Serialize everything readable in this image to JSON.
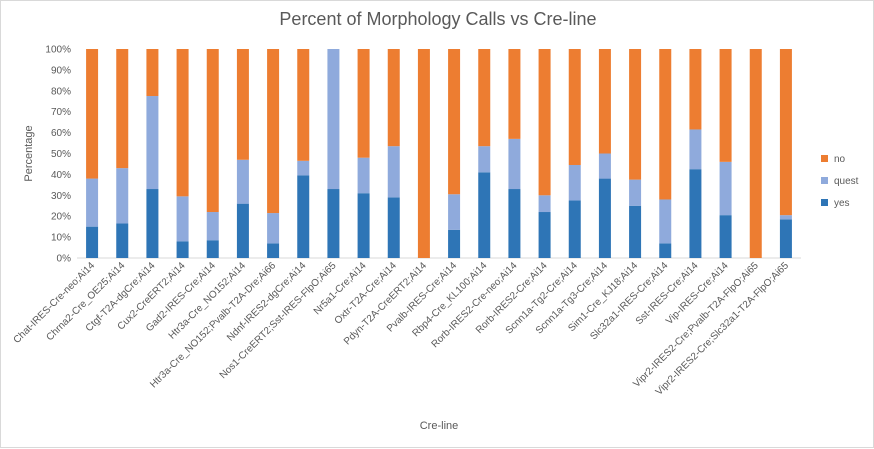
{
  "chart_data": {
    "type": "bar",
    "stacked": true,
    "title": "Percent of Morphology Calls vs Cre-line",
    "xlabel": "Cre-line",
    "ylabel": "Percentage",
    "ylim": [
      0,
      100
    ],
    "yticks": [
      "0%",
      "10%",
      "20%",
      "30%",
      "40%",
      "50%",
      "60%",
      "70%",
      "80%",
      "90%",
      "100%"
    ],
    "grid": false,
    "legend_position": "right",
    "categories": [
      "Chat-IRES-Cre-neo;Ai14",
      "Chrna2-Cre_OE25;Ai14",
      "Ctgf-T2A-dgCre;Ai14",
      "Cux2-CreERT2;Ai14",
      "Gad2-IRES-Cre;Ai14",
      "Htr3a-Cre_NO152;Ai14",
      "Htr3a-Cre_NO152;Pvalb-T2A-Dre;Ai66",
      "Ndnf-IRES2-dgCre;Ai14",
      "Nos1-CreERT2;Sst-IRES-FlpO;Ai65",
      "Nr5a1-Cre;Ai14",
      "Oxtr-T2A-Cre;Ai14",
      "Pdyn-T2A-CreERT2;Ai14",
      "Pvalb-IRES-Cre;Ai14",
      "Rbp4-Cre_KL100;Ai14",
      "Rorb-IRES2-Cre-neo;Ai14",
      "Rorb-IRES2-Cre;Ai14",
      "Scnn1a-Tg2-Cre;Ai14",
      "Scnn1a-Tg3-Cre;Ai14",
      "Sim1-Cre_KJ18;Ai14",
      "Slc32a1-IRES-Cre;Ai14",
      "Sst-IRES-Cre;Ai14",
      "Vip-IRES-Cre;Ai14",
      "Vipr2-IRES2-Cre;Pvalb-T2A-FlpO;Ai65",
      "Vipr2-IRES2-Cre;Slc32a1-T2A-FlpO;Ai65"
    ],
    "series": [
      {
        "name": "yes",
        "color": "#2e75b6",
        "values": [
          15,
          16.5,
          33,
          8,
          8.5,
          26,
          7,
          39.5,
          33,
          31,
          29,
          0,
          13.5,
          41,
          33,
          22,
          27.5,
          38,
          25,
          7,
          42.5,
          20.5,
          0,
          18.5
        ]
      },
      {
        "name": "quest",
        "color": "#8faadc",
        "values": [
          23,
          26.5,
          44.5,
          21.5,
          13.5,
          21,
          14.5,
          7,
          67,
          17,
          24.5,
          0,
          17,
          12.5,
          24,
          8,
          17,
          12,
          12.5,
          21,
          19,
          25.5,
          0,
          2
        ]
      },
      {
        "name": "no",
        "color": "#ed7d31",
        "values": [
          62,
          57,
          22.5,
          70.5,
          78,
          53,
          78.5,
          53.5,
          0,
          52,
          46.5,
          100,
          69.5,
          46.5,
          43,
          70,
          55.5,
          50,
          62.5,
          72,
          38.5,
          54,
          100,
          79.5
        ]
      }
    ]
  }
}
